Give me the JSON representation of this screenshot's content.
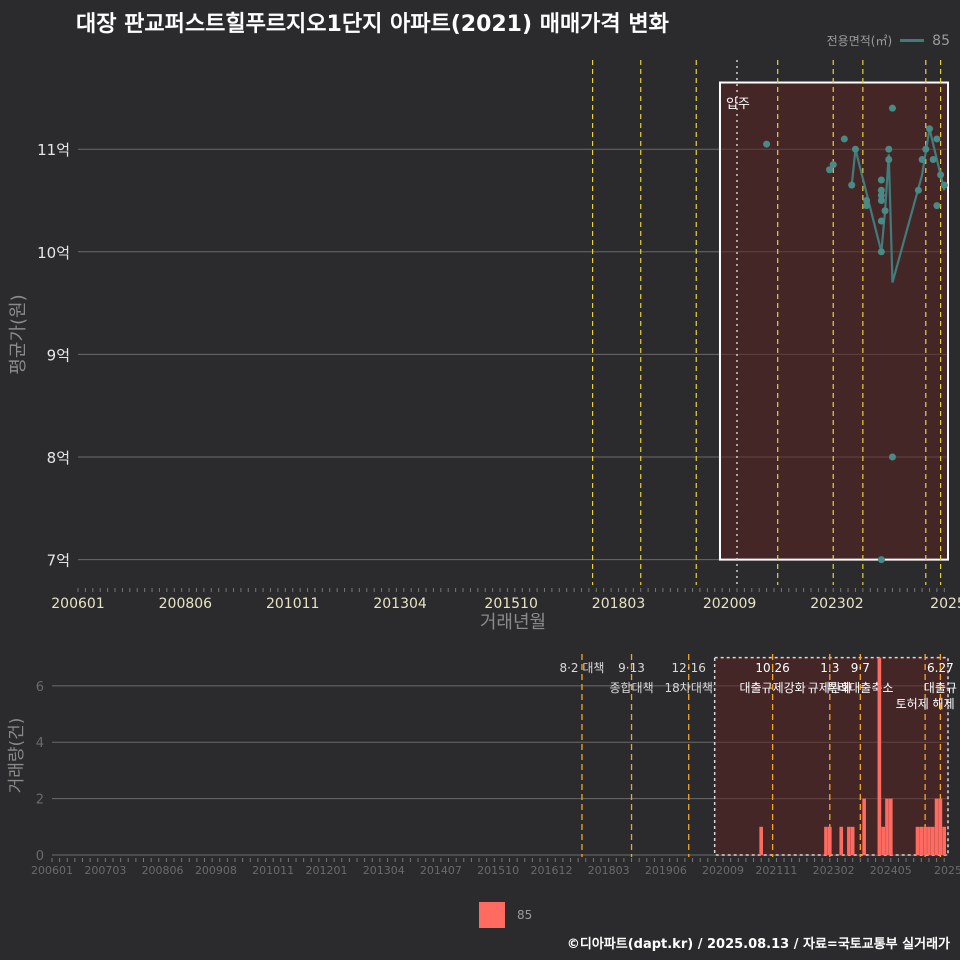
{
  "title": "대장 판교퍼스트힐푸르지오1단지 아파트(2021) 매매가격 변화",
  "legend_top": {
    "title": "전용면적(㎡)",
    "label": "85"
  },
  "legend_bottom": {
    "label": "85"
  },
  "footer": "©디아파트(dapt.kr) / 2025.08.13 / 자료=국토교통부 실거래가",
  "colors": {
    "background": "#2b2b2d",
    "grid": "#6b6b6b",
    "price_line": "#3f7c7b",
    "price_point": "#4a8a86",
    "volume_bar": "#ff6b61",
    "shade": "#4a1f1f",
    "policy_line_top": "#e8d33a",
    "policy_line_bottom": "#f5a623"
  },
  "chart_data": [
    {
      "type": "scatter",
      "xlabel": "거래년월",
      "ylabel": "평균가(원)",
      "x_ticks": [
        "200601",
        "200806",
        "201011",
        "201304",
        "201510",
        "201803",
        "202009",
        "202302",
        "2025"
      ],
      "xlim": [
        "2006-01",
        "2025-08"
      ],
      "ylim": [
        6.85,
        11.85
      ],
      "y_ticks": [
        7,
        8,
        9,
        10,
        11
      ],
      "y_tick_labels": [
        "7억",
        "8억",
        "9억",
        "10억",
        "11억"
      ],
      "annotation": "입주",
      "series": [
        {
          "name": "85",
          "points": [
            [
              "2021-07",
              11.05
            ],
            [
              "2022-12",
              10.8
            ],
            [
              "2023-01",
              10.85
            ],
            [
              "2023-04",
              11.1
            ],
            [
              "2023-06",
              10.65
            ],
            [
              "2023-07",
              11.0
            ],
            [
              "2023-10",
              10.45
            ],
            [
              "2023-10",
              10.5
            ],
            [
              "2024-02",
              7.0
            ],
            [
              "2024-02",
              10.0
            ],
            [
              "2024-02",
              10.3
            ],
            [
              "2024-02",
              10.5
            ],
            [
              "2024-02",
              10.55
            ],
            [
              "2024-02",
              10.6
            ],
            [
              "2024-02",
              10.7
            ],
            [
              "2024-03",
              10.4
            ],
            [
              "2024-04",
              10.9
            ],
            [
              "2024-04",
              11.0
            ],
            [
              "2024-05",
              11.4
            ],
            [
              "2024-05",
              8.0
            ],
            [
              "2024-12",
              10.6
            ],
            [
              "2025-01",
              10.9
            ],
            [
              "2025-02",
              11.0
            ],
            [
              "2025-03",
              11.2
            ],
            [
              "2025-04",
              10.9
            ],
            [
              "2025-05",
              11.1
            ],
            [
              "2025-05",
              10.45
            ],
            [
              "2025-06",
              10.75
            ],
            [
              "2025-07",
              10.65
            ]
          ],
          "line": [
            [
              "2023-06",
              10.65
            ],
            [
              "2023-07",
              11.0
            ],
            [
              "2024-02",
              10.0
            ],
            [
              "2024-03",
              10.4
            ],
            [
              "2024-04",
              10.95
            ],
            [
              "2024-05",
              9.7
            ],
            [
              "2025-01",
              10.75
            ],
            [
              "2025-03",
              11.2
            ],
            [
              "2025-05",
              10.9
            ],
            [
              "2025-07",
              10.6
            ]
          ]
        }
      ]
    },
    {
      "type": "bar",
      "xlabel": "",
      "ylabel": "거래량(건)",
      "x_ticks": [
        "200601",
        "200703",
        "200806",
        "200908",
        "201011",
        "201201",
        "201304",
        "201407",
        "201510",
        "201612",
        "201803",
        "201906",
        "202009",
        "202111",
        "202302",
        "202405",
        "2025"
      ],
      "xlim": [
        "2006-01",
        "2025-08"
      ],
      "ylim": [
        0,
        7.2
      ],
      "y_ticks": [
        0,
        2,
        4,
        6
      ],
      "y_tick_labels": [
        "0",
        "2",
        "4",
        "6"
      ],
      "series": [
        {
          "name": "85",
          "bars": [
            [
              "2021-07",
              1
            ],
            [
              "2022-12",
              1
            ],
            [
              "2023-01",
              1
            ],
            [
              "2023-04",
              1
            ],
            [
              "2023-06",
              1
            ],
            [
              "2023-07",
              1
            ],
            [
              "2023-10",
              2
            ],
            [
              "2024-02",
              7
            ],
            [
              "2024-03",
              1
            ],
            [
              "2024-04",
              2
            ],
            [
              "2024-05",
              2
            ],
            [
              "2024-12",
              1
            ],
            [
              "2025-01",
              1
            ],
            [
              "2025-02",
              1
            ],
            [
              "2025-03",
              1
            ],
            [
              "2025-04",
              1
            ],
            [
              "2025-05",
              2
            ],
            [
              "2025-06",
              2
            ],
            [
              "2025-07",
              1
            ]
          ]
        }
      ]
    }
  ],
  "policy_events": [
    {
      "date": "2017-08",
      "label1": "8·2 대책",
      "label2": ""
    },
    {
      "date": "2018-09",
      "label1": "9·13",
      "label2": "종합대책"
    },
    {
      "date": "2019-12",
      "label1": "12·16",
      "label2": "18차대책"
    },
    {
      "date": "2021-10",
      "label1": "10.26",
      "label2": "대출규제강화"
    },
    {
      "date": "2023-01",
      "label1": "1.3",
      "label2": "규제완화"
    },
    {
      "date": "2023-09",
      "label1": "9·7",
      "label2": "특례대출축소"
    },
    {
      "date": "2025-02",
      "label1": "",
      "label2": "토허제 해제"
    },
    {
      "date": "2025-06",
      "label1": "6.27",
      "label2": "대출규"
    }
  ],
  "occupancy_date": "2020-11"
}
